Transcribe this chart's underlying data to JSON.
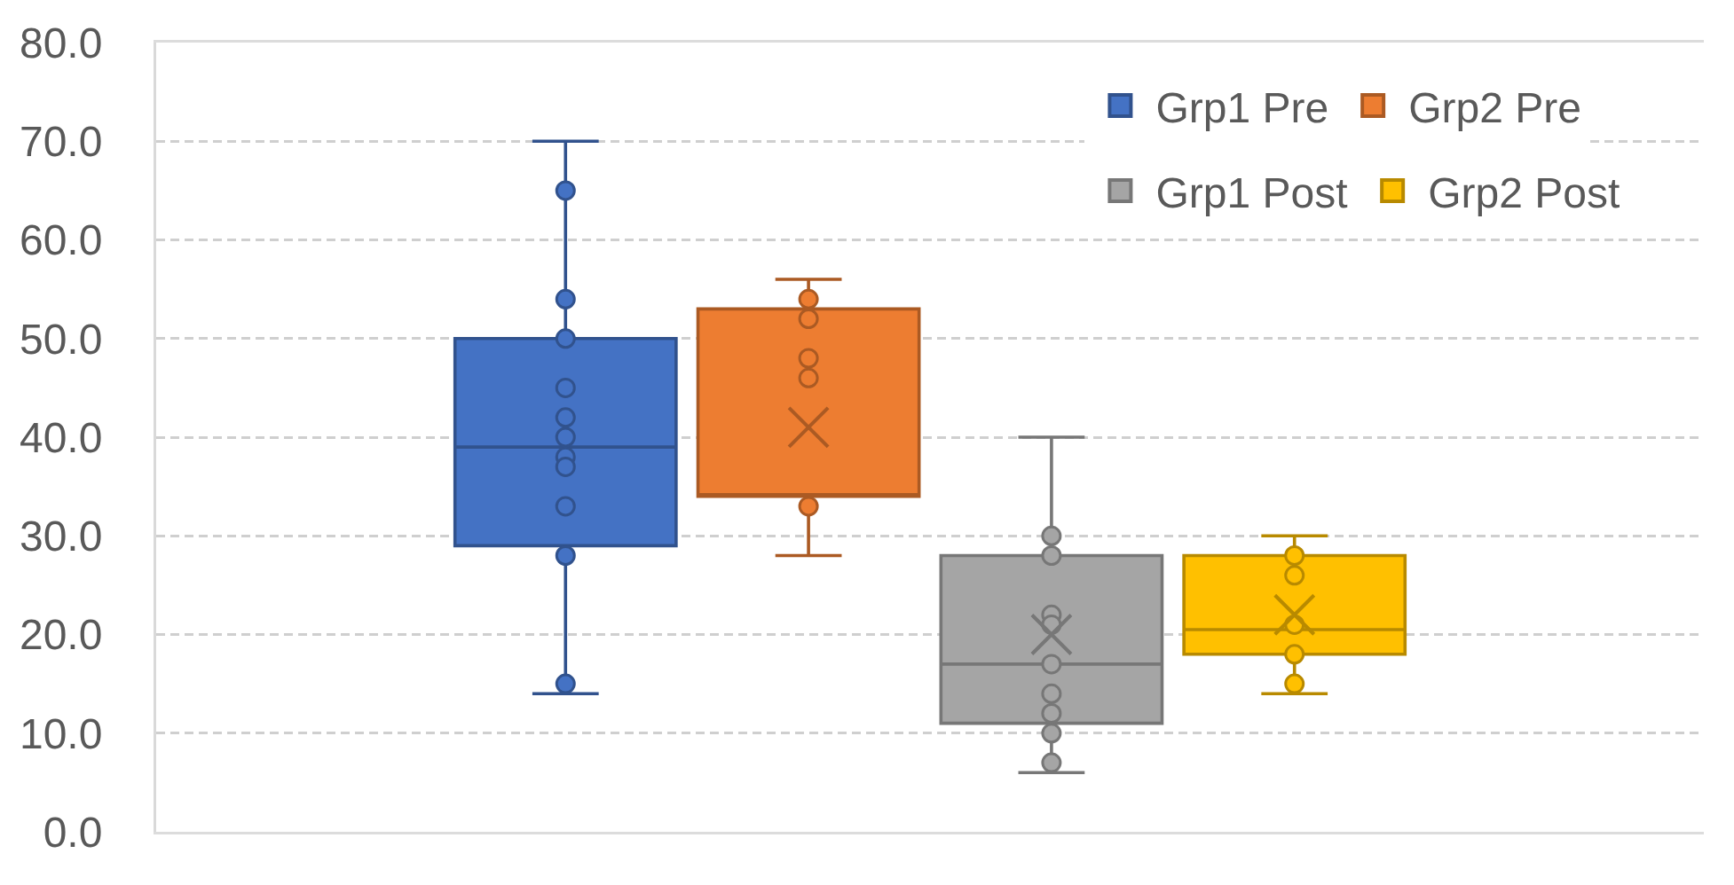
{
  "chart_data": {
    "type": "box",
    "categories": [
      null
    ],
    "series": [
      {
        "name": "Grp1 Pre",
        "color": "#4472c4",
        "boxes": [
          {
            "low": 14,
            "q1": 29,
            "median": 39,
            "q3": 50,
            "high": 70,
            "outliers": [
              65,
              54,
              50,
              45,
              42,
              40,
              38,
              37,
              33,
              28,
              15
            ]
          }
        ]
      },
      {
        "name": "Grp2 Pre",
        "color": "#ed7d31",
        "boxes": [
          {
            "low": 28,
            "q1": 34,
            "median": 34,
            "q3": 53,
            "high": 56,
            "mean": 41,
            "outliers": [
              54,
              52,
              48,
              46,
              33
            ]
          }
        ]
      },
      {
        "name": "Grp1 Post",
        "color": "#a5a5a5",
        "boxes": [
          {
            "low": 6,
            "q1": 11,
            "median": 17,
            "q3": 28,
            "high": 40,
            "mean": 20,
            "outliers": [
              30,
              28,
              22,
              21,
              17,
              14,
              12,
              10,
              7
            ]
          }
        ]
      },
      {
        "name": "Grp2 Post",
        "color": "#ffc000",
        "boxes": [
          {
            "low": 14,
            "q1": 18,
            "median": 20.5,
            "q3": 28,
            "high": 30,
            "mean": 22,
            "outliers": [
              28,
              26,
              21,
              18,
              15
            ]
          }
        ]
      }
    ],
    "ylim": [
      0,
      80
    ],
    "yticks": [
      {
        "value": 0,
        "label": "0.0"
      },
      {
        "value": 10,
        "label": "10.0"
      },
      {
        "value": 20,
        "label": "20.0"
      },
      {
        "value": 30,
        "label": "30.0"
      },
      {
        "value": 40,
        "label": "40.0"
      },
      {
        "value": 50,
        "label": "50.0"
      },
      {
        "value": 60,
        "label": "60.0"
      },
      {
        "value": 70,
        "label": "70.0"
      },
      {
        "value": 80,
        "label": "80.0"
      }
    ],
    "grid": "y",
    "legend": "top right",
    "tick_labels": "y",
    "marker": "circle"
  }
}
